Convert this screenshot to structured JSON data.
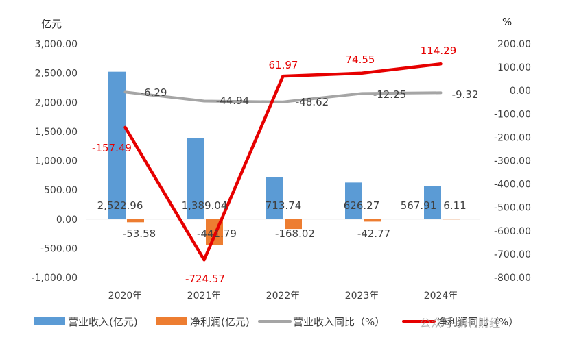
{
  "chart_data": {
    "type": "bar",
    "categories": [
      "2020年",
      "2021年",
      "2022年",
      "2023年",
      "2024年"
    ],
    "left_axis": {
      "unit": "亿元",
      "range": [
        -1000,
        3000
      ],
      "ticks": [
        "3,000.00",
        "2,500.00",
        "2,000.00",
        "1,500.00",
        "1,000.00",
        "500.00",
        "0.00",
        "-500.00",
        "-1,000.00"
      ]
    },
    "right_axis": {
      "unit": "%",
      "range": [
        -800,
        200
      ],
      "ticks": [
        "200.00",
        "100.00",
        "0.00",
        "-100.00",
        "-200.00",
        "-300.00",
        "-400.00",
        "-500.00",
        "-600.00",
        "-700.00",
        "-800.00"
      ]
    },
    "series": [
      {
        "name": "营业收入(亿元)",
        "type": "bar",
        "axis": "left",
        "color": "#5b9bd5",
        "values": [
          2522.96,
          1389.04,
          713.74,
          626.27,
          567.91
        ],
        "labels": [
          "2,522.96",
          "1,389.04",
          "713.74",
          "626.27",
          "567.91"
        ]
      },
      {
        "name": "净利润(亿元)",
        "type": "bar",
        "axis": "left",
        "color": "#ed7d31",
        "values": [
          -53.58,
          -441.79,
          -168.02,
          -42.77,
          6.11
        ],
        "labels": [
          "-53.58",
          "-441.79",
          "-168.02",
          "-42.77",
          "6.11"
        ]
      },
      {
        "name": "营业收入同比（%）",
        "type": "line",
        "axis": "right",
        "color": "#a5a5a5",
        "values": [
          -6.29,
          -44.94,
          -48.62,
          -12.25,
          -9.32
        ],
        "labels": [
          "-6.29",
          "-44.94",
          "-48.62",
          "-12.25",
          "-9.32"
        ]
      },
      {
        "name": "净利润同比（%）",
        "type": "line",
        "axis": "right",
        "color": "#e60000",
        "values": [
          -157.49,
          -724.57,
          61.97,
          74.55,
          114.29
        ],
        "labels": [
          "-157.49",
          "-724.57",
          "61.97",
          "74.55",
          "114.29"
        ]
      }
    ],
    "grid": false,
    "legend": "bottom"
  },
  "watermark": "公众号·新刊财经"
}
